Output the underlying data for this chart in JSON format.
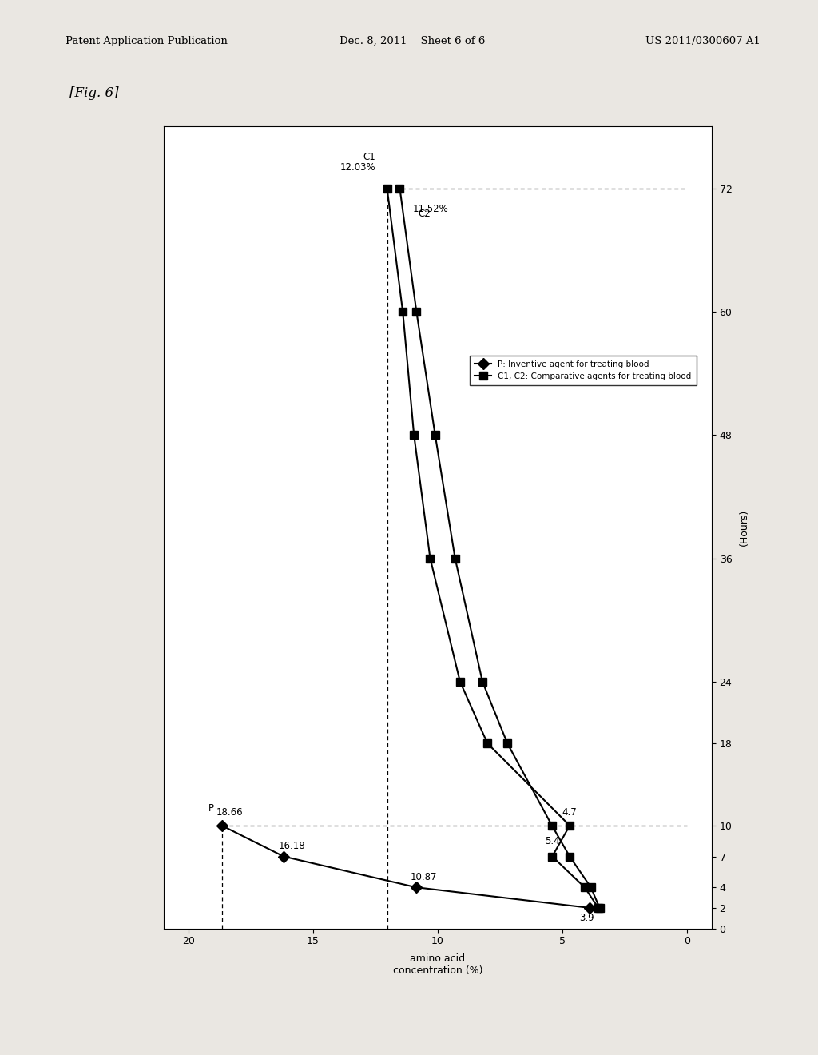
{
  "header_left": "Patent Application Publication",
  "header_center": "Dec. 8, 2011    Sheet 6 of 6",
  "header_right": "US 2011/0300607 A1",
  "fig_label": "[Fig. 6]",
  "background_color": "#eae7e2",
  "P_conc": [
    3.9,
    10.87,
    16.18,
    18.66
  ],
  "P_hours": [
    2,
    4,
    7,
    10
  ],
  "C1_conc": [
    3.55,
    4.1,
    5.4,
    4.7,
    8.0,
    9.1,
    10.3,
    10.95,
    11.4,
    12.03
  ],
  "C1_hours": [
    2,
    4,
    7,
    10,
    18,
    24,
    36,
    48,
    60,
    72
  ],
  "C2_conc": [
    3.5,
    3.85,
    4.7,
    5.41,
    7.2,
    8.2,
    9.3,
    10.1,
    10.85,
    11.52
  ],
  "C2_hours": [
    2,
    4,
    7,
    10,
    18,
    24,
    36,
    48,
    60,
    72
  ],
  "conc_ticks": [
    0,
    5,
    10,
    15,
    20
  ],
  "hours_ticks": [
    0,
    2,
    4,
    7,
    10,
    18,
    24,
    36,
    48,
    60,
    72
  ],
  "conc_lim": [
    21,
    -1
  ],
  "hours_lim": [
    0,
    78
  ],
  "legend_P_label": "P: Inventive agent for treating blood",
  "legend_C_label": "C1, C2: Comparative agents for treating blood",
  "xlabel_rotated": "amino acid\nconcentration (%)",
  "ylabel_rotated": "(Hours)"
}
